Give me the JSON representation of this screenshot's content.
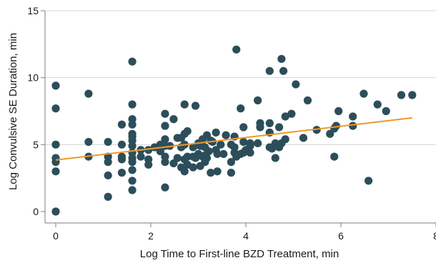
{
  "chart_data": {
    "type": "scatter",
    "title": "",
    "xlabel": "Log Time to First-line BZD Treatment, min",
    "ylabel": "Log Convulsive SE Duration, min",
    "xlim": [
      0,
      8
    ],
    "ylim": [
      0,
      15
    ],
    "x_ticks": [
      0,
      2,
      4,
      6,
      8
    ],
    "y_ticks": [
      0,
      5,
      10,
      15
    ],
    "x_tick_labels": [
      "0",
      "2",
      "4",
      "6",
      "8"
    ],
    "y_tick_labels": [
      "0",
      "5",
      "10",
      "15"
    ],
    "grid": "horizontal",
    "legend": "none",
    "colors": {
      "points": "#2c4e5a",
      "fit_line": "#f0982a",
      "grid": "#d6d6d6",
      "axis": "#7f7f7f"
    },
    "series": [
      {
        "points": [
          [
            0,
            0
          ],
          [
            0,
            3.0
          ],
          [
            0,
            3.7
          ],
          [
            0,
            4.0
          ],
          [
            0,
            5.0
          ],
          [
            0,
            7.7
          ],
          [
            0,
            9.4
          ],
          [
            0.69,
            4.1
          ],
          [
            0.69,
            5.2
          ],
          [
            0.69,
            8.8
          ],
          [
            1.1,
            1.1
          ],
          [
            1.1,
            2.7
          ],
          [
            1.1,
            3.7
          ],
          [
            1.1,
            4.1
          ],
          [
            1.1,
            5.2
          ],
          [
            1.39,
            2.9
          ],
          [
            1.39,
            3.9
          ],
          [
            1.39,
            4.1
          ],
          [
            1.39,
            5.0
          ],
          [
            1.39,
            6.5
          ],
          [
            1.61,
            1.6
          ],
          [
            1.61,
            2.3
          ],
          [
            1.61,
            3.1
          ],
          [
            1.61,
            3.7
          ],
          [
            1.61,
            4.0
          ],
          [
            1.61,
            4.4
          ],
          [
            1.61,
            4.9
          ],
          [
            1.61,
            5.3
          ],
          [
            1.61,
            5.6
          ],
          [
            1.61,
            5.8
          ],
          [
            1.61,
            6.5
          ],
          [
            1.61,
            6.9
          ],
          [
            1.61,
            8.0
          ],
          [
            1.61,
            11.2
          ],
          [
            1.79,
            4.1
          ],
          [
            1.79,
            4.6
          ],
          [
            1.95,
            3.5
          ],
          [
            1.95,
            3.9
          ],
          [
            1.95,
            4.6
          ],
          [
            2.08,
            4.8
          ],
          [
            2.2,
            4.5
          ],
          [
            2.2,
            5.0
          ],
          [
            2.3,
            1.8
          ],
          [
            2.3,
            3.7
          ],
          [
            2.3,
            4.1
          ],
          [
            2.3,
            4.9
          ],
          [
            2.3,
            5.4
          ],
          [
            2.3,
            6.4
          ],
          [
            2.3,
            7.3
          ],
          [
            2.4,
            4.9
          ],
          [
            2.48,
            3.6
          ],
          [
            2.48,
            6.9
          ],
          [
            2.56,
            4.0
          ],
          [
            2.56,
            5.5
          ],
          [
            2.64,
            3.3
          ],
          [
            2.64,
            4.8
          ],
          [
            2.64,
            5.5
          ],
          [
            2.71,
            3.0
          ],
          [
            2.71,
            3.9
          ],
          [
            2.71,
            5.0
          ],
          [
            2.71,
            5.8
          ],
          [
            2.71,
            8.0
          ],
          [
            2.77,
            3.5
          ],
          [
            2.77,
            4.1
          ],
          [
            2.77,
            6.0
          ],
          [
            2.89,
            3.3
          ],
          [
            2.89,
            4.1
          ],
          [
            2.89,
            4.8
          ],
          [
            2.94,
            4.0
          ],
          [
            2.94,
            7.9
          ],
          [
            3.0,
            4.3
          ],
          [
            3.0,
            5.1
          ],
          [
            3.04,
            3.4
          ],
          [
            3.04,
            4.9
          ],
          [
            3.09,
            4.1
          ],
          [
            3.09,
            4.9
          ],
          [
            3.09,
            5.4
          ],
          [
            3.14,
            3.7
          ],
          [
            3.14,
            4.2
          ],
          [
            3.14,
            4.8
          ],
          [
            3.18,
            4.0
          ],
          [
            3.18,
            5.7
          ],
          [
            3.22,
            4.5
          ],
          [
            3.26,
            2.9
          ],
          [
            3.26,
            5.3
          ],
          [
            3.3,
            5.2
          ],
          [
            3.37,
            4.6
          ],
          [
            3.37,
            5.9
          ],
          [
            3.4,
            3.0
          ],
          [
            3.4,
            4.3
          ],
          [
            3.47,
            5.0
          ],
          [
            3.53,
            4.3
          ],
          [
            3.58,
            5.7
          ],
          [
            3.69,
            2.9
          ],
          [
            3.69,
            3.7
          ],
          [
            3.69,
            5.0
          ],
          [
            3.76,
            4.4
          ],
          [
            3.76,
            4.8
          ],
          [
            3.76,
            5.6
          ],
          [
            3.8,
            4.1
          ],
          [
            3.8,
            12.1
          ],
          [
            3.89,
            4.3
          ],
          [
            3.89,
            7.7
          ],
          [
            3.95,
            4.4
          ],
          [
            3.95,
            5.2
          ],
          [
            3.95,
            6.3
          ],
          [
            4.0,
            4.6
          ],
          [
            4.09,
            4.4
          ],
          [
            4.09,
            4.9
          ],
          [
            4.09,
            5.1
          ],
          [
            4.25,
            5.1
          ],
          [
            4.25,
            8.3
          ],
          [
            4.3,
            6.3
          ],
          [
            4.3,
            6.6
          ],
          [
            4.5,
            4.8
          ],
          [
            4.5,
            5.9
          ],
          [
            4.5,
            6.6
          ],
          [
            4.5,
            10.5
          ],
          [
            4.55,
            4.7
          ],
          [
            4.62,
            4.0
          ],
          [
            4.62,
            5.1
          ],
          [
            4.7,
            4.8
          ],
          [
            4.7,
            6.3
          ],
          [
            4.75,
            5.1
          ],
          [
            4.75,
            11.4
          ],
          [
            4.79,
            10.5
          ],
          [
            4.83,
            5.4
          ],
          [
            4.83,
            7.1
          ],
          [
            4.96,
            7.3
          ],
          [
            5.05,
            9.5
          ],
          [
            5.21,
            5.5
          ],
          [
            5.3,
            8.3
          ],
          [
            5.49,
            6.1
          ],
          [
            5.77,
            5.8
          ],
          [
            5.86,
            4.1
          ],
          [
            5.86,
            6.2
          ],
          [
            5.9,
            6.4
          ],
          [
            5.95,
            7.5
          ],
          [
            6.25,
            6.4
          ],
          [
            6.25,
            7.1
          ],
          [
            6.48,
            8.8
          ],
          [
            6.58,
            2.3
          ],
          [
            6.77,
            8.0
          ],
          [
            6.95,
            7.5
          ],
          [
            7.27,
            8.7
          ],
          [
            7.5,
            8.7
          ]
        ]
      }
    ],
    "fit_line": {
      "x": [
        0,
        7.5
      ],
      "y": [
        3.85,
        7.0
      ]
    }
  }
}
